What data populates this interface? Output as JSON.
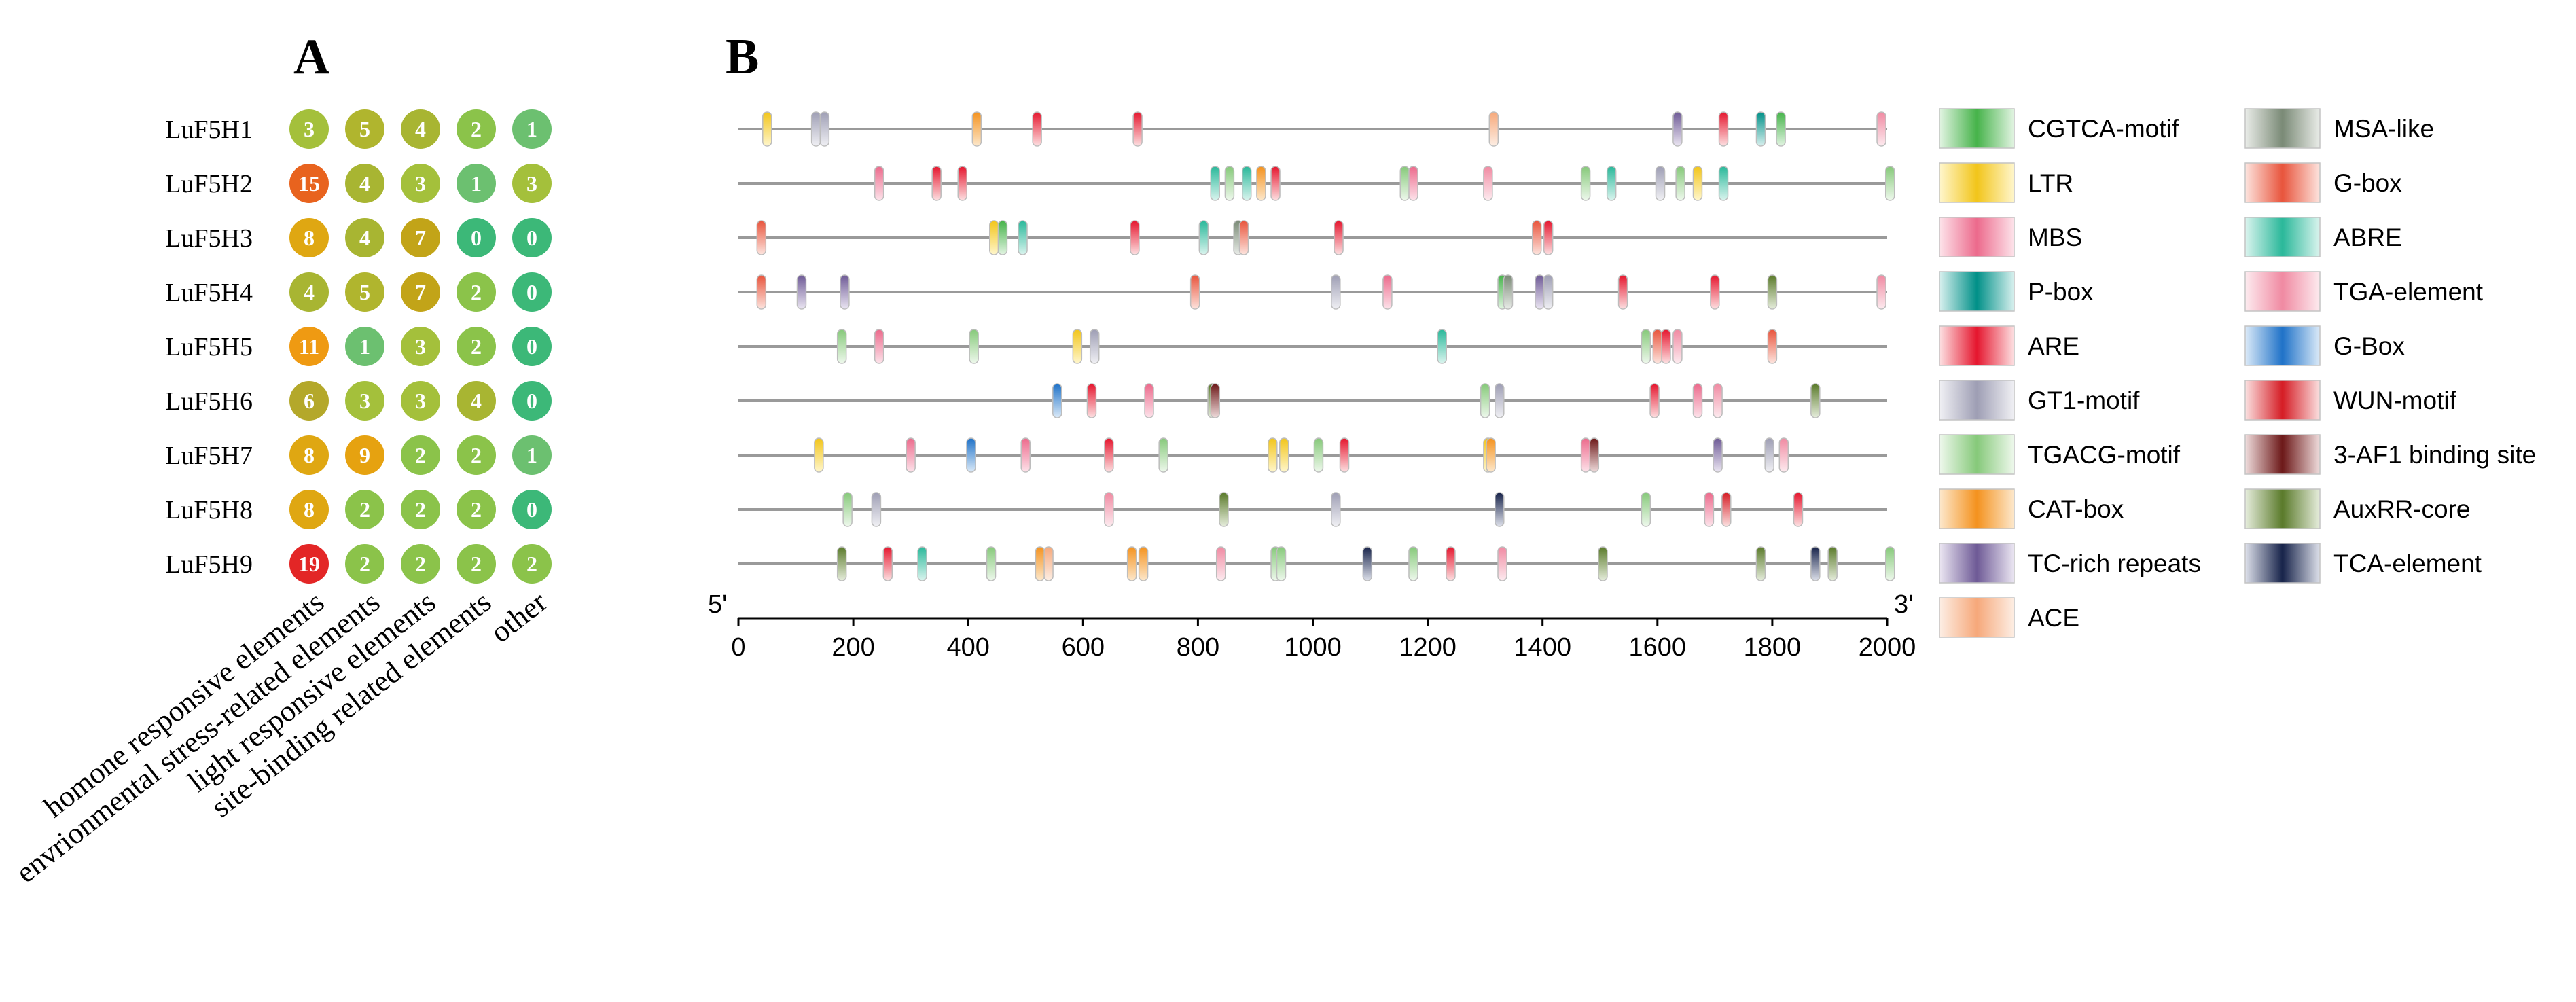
{
  "panels": {
    "A": "A",
    "B": "B"
  },
  "chart_data": [
    {
      "type": "heatmap",
      "rows": [
        "LuF5H1",
        "LuF5H2",
        "LuF5H3",
        "LuF5H4",
        "LuF5H5",
        "LuF5H6",
        "LuF5H7",
        "LuF5H8",
        "LuF5H9"
      ],
      "columns": [
        "homone responsive elements",
        "envrionmental stress-related elements",
        "light responsive elements",
        "site-binding related elements",
        "other"
      ],
      "values": [
        [
          3,
          5,
          4,
          2,
          1
        ],
        [
          15,
          4,
          3,
          1,
          3
        ],
        [
          8,
          4,
          7,
          0,
          0
        ],
        [
          4,
          5,
          7,
          2,
          0
        ],
        [
          11,
          1,
          3,
          2,
          0
        ],
        [
          6,
          3,
          3,
          4,
          0
        ],
        [
          8,
          9,
          2,
          2,
          1
        ],
        [
          8,
          2,
          2,
          2,
          0
        ],
        [
          19,
          2,
          2,
          2,
          2
        ]
      ],
      "colors": {
        "0": "#3cb878",
        "1": "#6cc070",
        "2": "#8bc34a",
        "3": "#a4c03b",
        "4": "#a8b532",
        "5": "#b0b52e",
        "6": "#b4a82a",
        "7": "#c2a418",
        "8": "#dfa712",
        "9": "#e6a210",
        "11": "#ef9a12",
        "15": "#e8631e",
        "19": "#e32626"
      }
    },
    {
      "type": "scatter",
      "x_axis": {
        "min": 0,
        "max": 2000,
        "ticks": [
          "0",
          "200",
          "400",
          "600",
          "800",
          "1000",
          "1200",
          "1400",
          "1600",
          "1800",
          "2000"
        ],
        "left_end": "5'",
        "right_end": "3'"
      },
      "tracks": [
        {
          "gene": "LuF5H1",
          "elements": [
            [
              50,
              "LTR"
            ],
            [
              135,
              "GT1-motif"
            ],
            [
              150,
              "GT1-motif"
            ],
            [
              415,
              "CAT-box"
            ],
            [
              520,
              "ARE"
            ],
            [
              695,
              "ARE"
            ],
            [
              1315,
              "ACE"
            ],
            [
              1635,
              "TC-rich repeats"
            ],
            [
              1715,
              "ARE"
            ],
            [
              1780,
              "P-box"
            ],
            [
              1815,
              "CGTCA-motif"
            ],
            [
              1990,
              "TGA-element"
            ]
          ]
        },
        {
          "gene": "LuF5H2",
          "elements": [
            [
              245,
              "MBS"
            ],
            [
              345,
              "ARE"
            ],
            [
              390,
              "ARE"
            ],
            [
              830,
              "ABRE"
            ],
            [
              855,
              "TGACG-motif"
            ],
            [
              885,
              "ABRE"
            ],
            [
              910,
              "CAT-box"
            ],
            [
              935,
              "ARE"
            ],
            [
              1160,
              "TGACG-motif"
            ],
            [
              1175,
              "MBS"
            ],
            [
              1305,
              "TGA-element"
            ],
            [
              1475,
              "TGACG-motif"
            ],
            [
              1520,
              "ABRE"
            ],
            [
              1605,
              "GT1-motif"
            ],
            [
              1640,
              "TGACG-motif"
            ],
            [
              1670,
              "LTR"
            ],
            [
              1715,
              "ABRE"
            ],
            [
              2005,
              "TGACG-motif"
            ]
          ]
        },
        {
          "gene": "LuF5H3",
          "elements": [
            [
              40,
              "G-box"
            ],
            [
              445,
              "LTR"
            ],
            [
              460,
              "CGTCA-motif"
            ],
            [
              495,
              "ABRE"
            ],
            [
              690,
              "ARE"
            ],
            [
              810,
              "ABRE"
            ],
            [
              870,
              "MSA-like"
            ],
            [
              880,
              "G-box"
            ],
            [
              1045,
              "ARE"
            ],
            [
              1390,
              "G-box"
            ],
            [
              1410,
              "ARE"
            ]
          ]
        },
        {
          "gene": "LuF5H4",
          "elements": [
            [
              40,
              "G-box"
            ],
            [
              110,
              "TC-rich repeats"
            ],
            [
              185,
              "TC-rich repeats"
            ],
            [
              795,
              "G-box"
            ],
            [
              1040,
              "GT1-motif"
            ],
            [
              1130,
              "MBS"
            ],
            [
              1330,
              "CGTCA-motif"
            ],
            [
              1340,
              "MSA-like"
            ],
            [
              1395,
              "TC-rich repeats"
            ],
            [
              1410,
              "GT1-motif"
            ],
            [
              1540,
              "ARE"
            ],
            [
              1700,
              "ARE"
            ],
            [
              1800,
              "AuxRR-core"
            ],
            [
              1990,
              "TGA-element"
            ]
          ]
        },
        {
          "gene": "LuF5H5",
          "elements": [
            [
              180,
              "TGACG-motif"
            ],
            [
              245,
              "MBS"
            ],
            [
              410,
              "TGACG-motif"
            ],
            [
              590,
              "LTR"
            ],
            [
              620,
              "GT1-motif"
            ],
            [
              1225,
              "ABRE"
            ],
            [
              1580,
              "TGACG-motif"
            ],
            [
              1600,
              "G-box"
            ],
            [
              1615,
              "ARE"
            ],
            [
              1635,
              "TGA-element"
            ],
            [
              1800,
              "G-box"
            ]
          ]
        },
        {
          "gene": "LuF5H6",
          "elements": [
            [
              555,
              "G-Box"
            ],
            [
              615,
              "ARE"
            ],
            [
              715,
              "MBS"
            ],
            [
              825,
              "AuxRR-core"
            ],
            [
              830,
              "3-AF1 binding site"
            ],
            [
              1300,
              "TGACG-motif"
            ],
            [
              1325,
              "GT1-motif"
            ],
            [
              1595,
              "ARE"
            ],
            [
              1670,
              "MBS"
            ],
            [
              1705,
              "TGA-element"
            ],
            [
              1875,
              "AuxRR-core"
            ]
          ]
        },
        {
          "gene": "LuF5H7",
          "elements": [
            [
              140,
              "LTR"
            ],
            [
              300,
              "MBS"
            ],
            [
              405,
              "G-Box"
            ],
            [
              500,
              "MBS"
            ],
            [
              645,
              "ARE"
            ],
            [
              740,
              "TGACG-motif"
            ],
            [
              930,
              "LTR"
            ],
            [
              950,
              "LTR"
            ],
            [
              1010,
              "TGACG-motif"
            ],
            [
              1055,
              "ARE"
            ],
            [
              1305,
              "LTR"
            ],
            [
              1310,
              "CAT-box"
            ],
            [
              1475,
              "MBS"
            ],
            [
              1490,
              "3-AF1 binding site"
            ],
            [
              1705,
              "TC-rich repeats"
            ],
            [
              1795,
              "GT1-motif"
            ],
            [
              1820,
              "TGA-element"
            ]
          ]
        },
        {
          "gene": "LuF5H8",
          "elements": [
            [
              190,
              "TGACG-motif"
            ],
            [
              240,
              "GT1-motif"
            ],
            [
              645,
              "TGA-element"
            ],
            [
              845,
              "AuxRR-core"
            ],
            [
              1040,
              "GT1-motif"
            ],
            [
              1325,
              "TCA-element"
            ],
            [
              1580,
              "TGACG-motif"
            ],
            [
              1690,
              "MBS"
            ],
            [
              1720,
              "WUN-motif"
            ],
            [
              1845,
              "ARE"
            ]
          ]
        },
        {
          "gene": "LuF5H9",
          "elements": [
            [
              180,
              "AuxRR-core"
            ],
            [
              260,
              "ARE"
            ],
            [
              320,
              "ABRE"
            ],
            [
              440,
              "TGACG-motif"
            ],
            [
              525,
              "CAT-box"
            ],
            [
              540,
              "ACE"
            ],
            [
              685,
              "CAT-box"
            ],
            [
              705,
              "CAT-box"
            ],
            [
              840,
              "TGA-element"
            ],
            [
              935,
              "TGACG-motif"
            ],
            [
              945,
              "TGACG-motif"
            ],
            [
              1095,
              "TCA-element"
            ],
            [
              1175,
              "TGACG-motif"
            ],
            [
              1240,
              "ARE"
            ],
            [
              1330,
              "TGA-element"
            ],
            [
              1505,
              "AuxRR-core"
            ],
            [
              1780,
              "AuxRR-core"
            ],
            [
              1875,
              "TCA-element"
            ],
            [
              1905,
              "AuxRR-core"
            ],
            [
              2005,
              "TGACG-motif"
            ]
          ]
        }
      ],
      "legend": [
        {
          "name": "CGTCA-motif",
          "color": "#46b34a",
          "light": "#e2f4e2"
        },
        {
          "name": "LTR",
          "color": "#f2c51a",
          "light": "#fff6cc"
        },
        {
          "name": "MBS",
          "color": "#ec6a8c",
          "light": "#fde3ea"
        },
        {
          "name": "P-box",
          "color": "#009088",
          "light": "#d8f0ee"
        },
        {
          "name": "ARE",
          "color": "#e5162e",
          "light": "#fde0e2"
        },
        {
          "name": "GT1-motif",
          "color": "#9e9eb4",
          "light": "#f0f0f4"
        },
        {
          "name": "TGACG-motif",
          "color": "#86c97a",
          "light": "#eef8ec"
        },
        {
          "name": "CAT-box",
          "color": "#f4921e",
          "light": "#fde8cc"
        },
        {
          "name": "TC-rich repeats",
          "color": "#6e5a96",
          "light": "#ebe6f2"
        },
        {
          "name": "ACE",
          "color": "#f6a87a",
          "light": "#fdeee4"
        },
        {
          "name": "MSA-like",
          "color": "#7a8a76",
          "light": "#e9ece8"
        },
        {
          "name": "G-box",
          "color": "#e8543c",
          "light": "#fde4de"
        },
        {
          "name": "ABRE",
          "color": "#2ab89a",
          "light": "#daf4ee"
        },
        {
          "name": "TGA-element",
          "color": "#f08aa2",
          "light": "#fdebef"
        },
        {
          "name": "G-Box",
          "color": "#1f72c8",
          "light": "#dbeaf8"
        },
        {
          "name": "WUN-motif",
          "color": "#d51c24",
          "light": "#fbe0e0"
        },
        {
          "name": "3-AF1 binding site",
          "color": "#6c1818",
          "light": "#efdcdc"
        },
        {
          "name": "AuxRR-core",
          "color": "#5a7a2a",
          "light": "#e6eddc"
        },
        {
          "name": "TCA-element",
          "color": "#17234a",
          "light": "#dde0ea"
        }
      ]
    }
  ]
}
